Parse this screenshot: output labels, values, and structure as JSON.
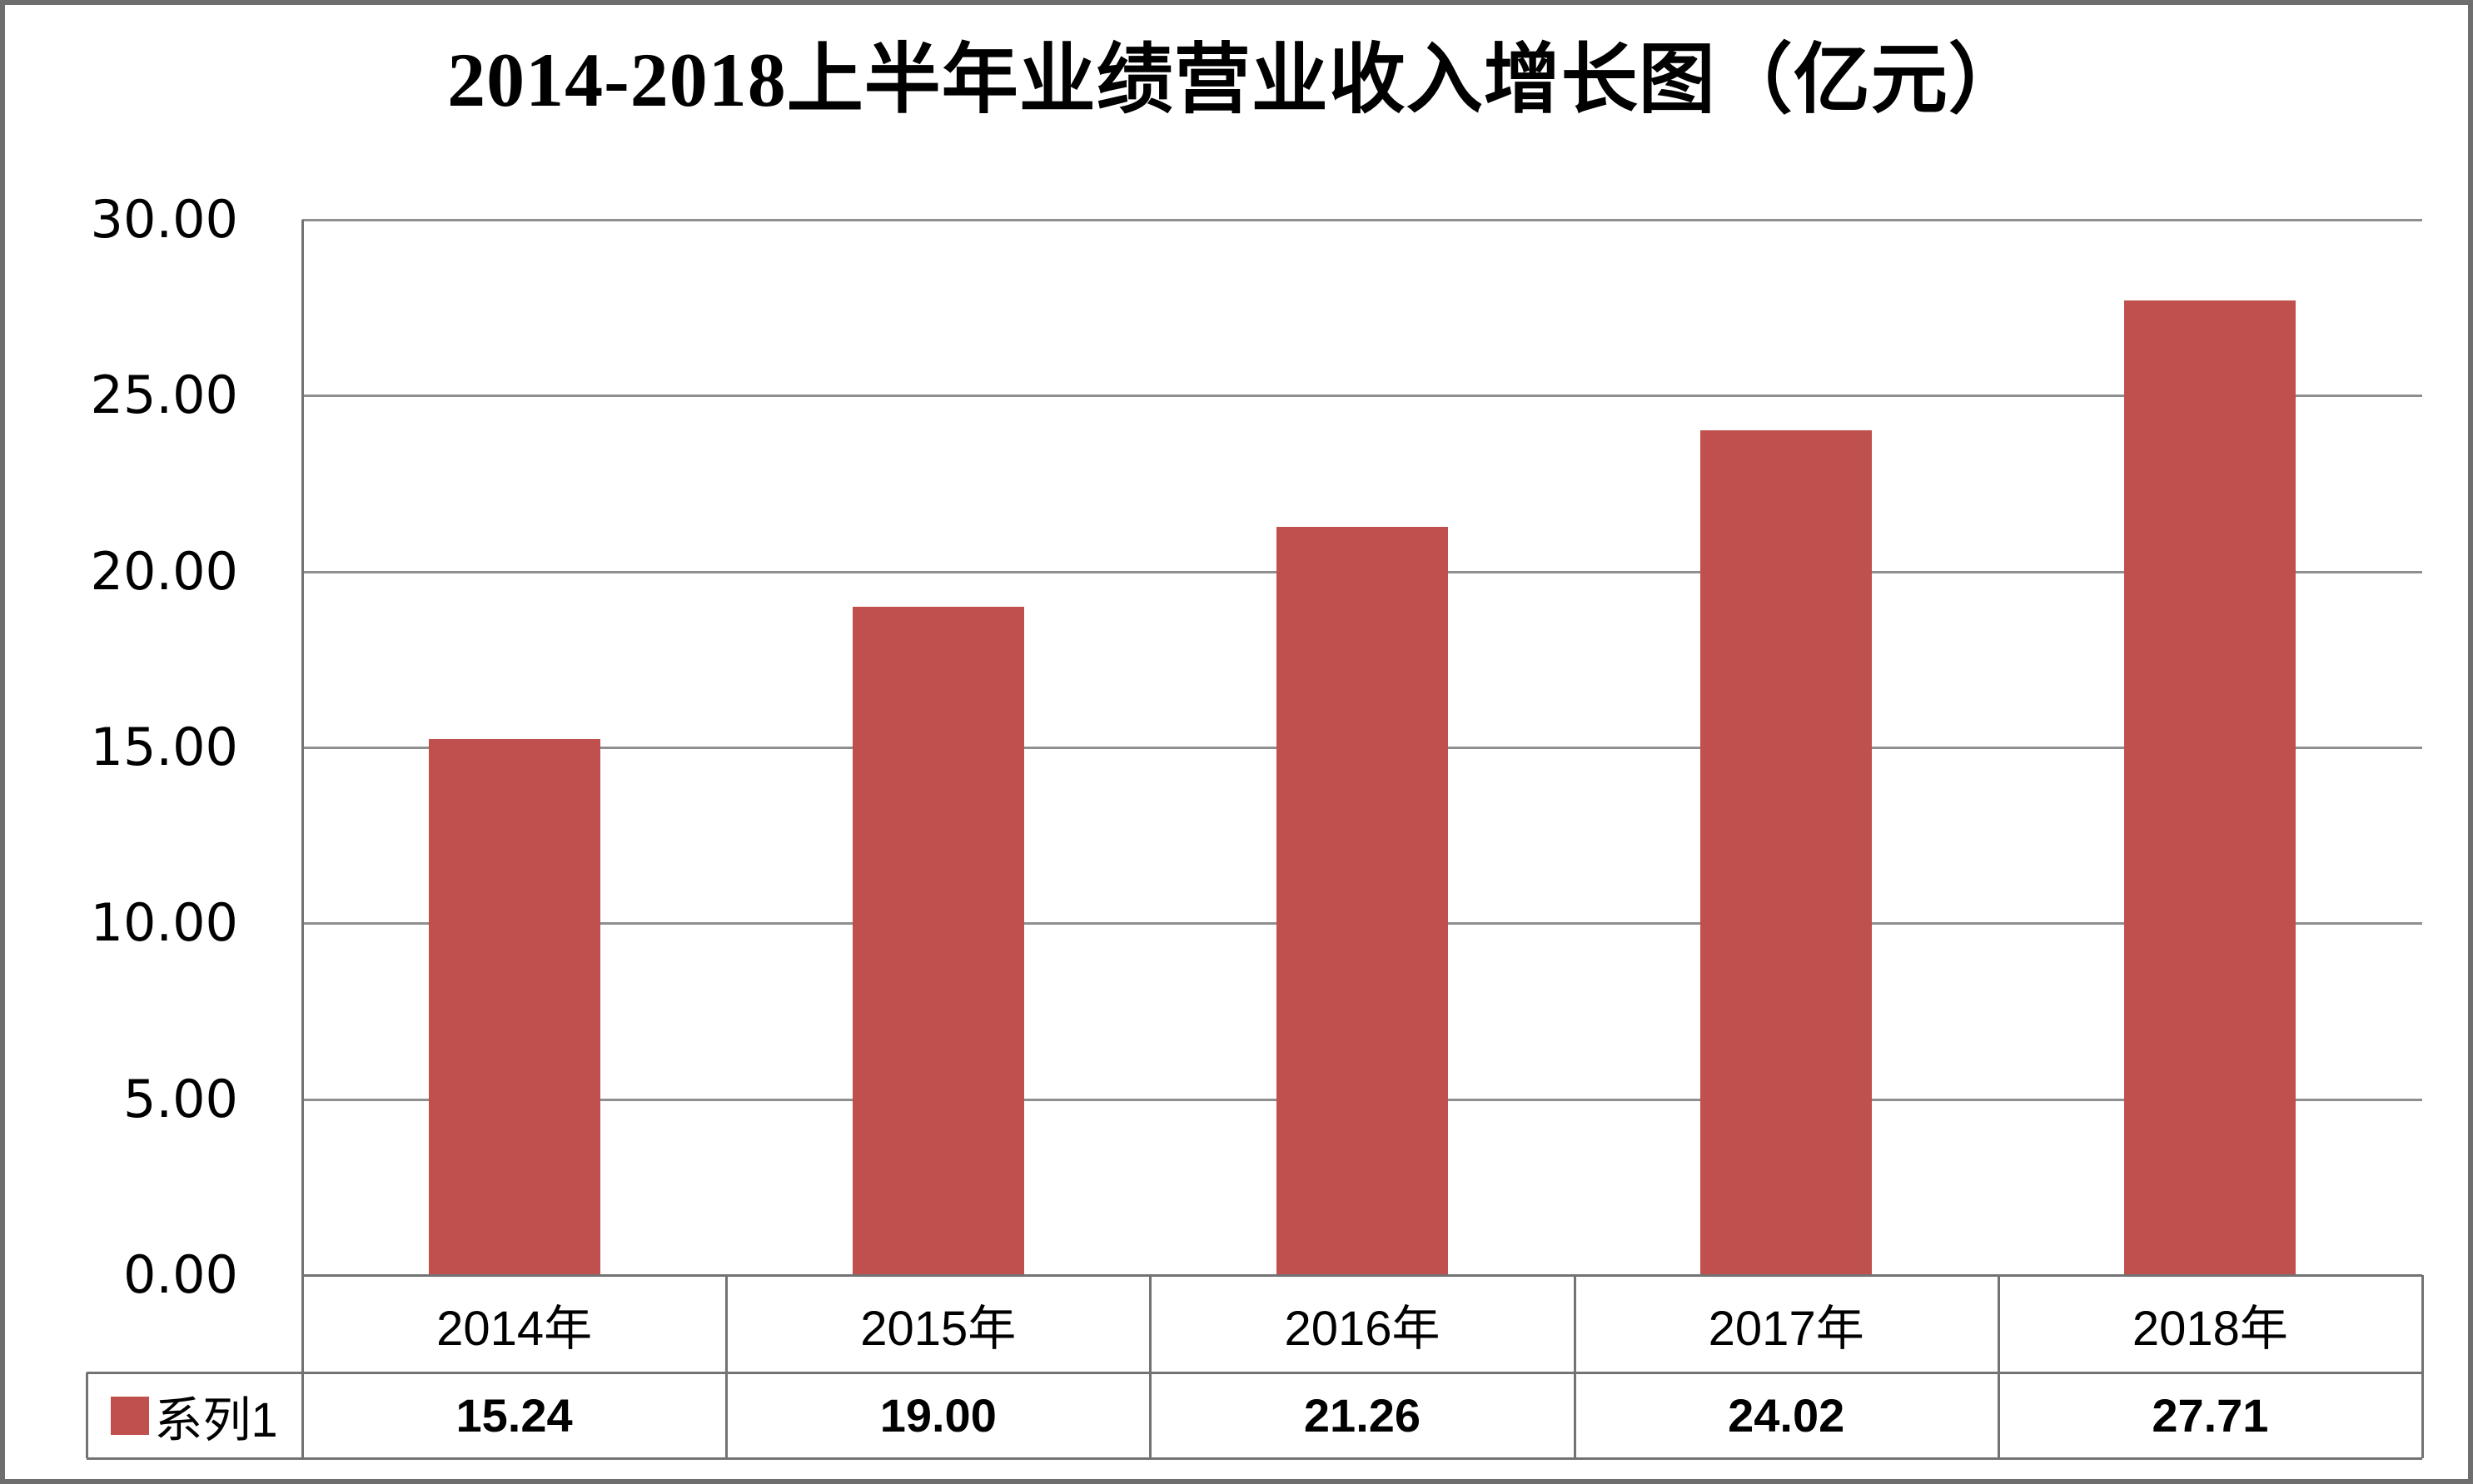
{
  "frame": {
    "background": "#ffffff",
    "border_color": "#6e6e6e"
  },
  "chart_data": {
    "type": "bar",
    "title": "2014-2018上半年业绩营业收入增长图（亿元）",
    "xlabel": "",
    "ylabel": "",
    "categories": [
      "2014年",
      "2015年",
      "2016年",
      "2017年",
      "2018年"
    ],
    "series": [
      {
        "name": "系列1",
        "color": "#C0504D",
        "values": [
          15.24,
          19.0,
          21.26,
          24.02,
          27.71
        ],
        "value_labels": [
          "15.24",
          "19.00",
          "21.26",
          "24.02",
          "27.71"
        ]
      }
    ],
    "ylim": [
      0,
      30
    ],
    "y_tick_step": 5,
    "y_tick_labels": [
      "30.00",
      "25.00",
      "20.00",
      "15.00",
      "10.00",
      "5.00",
      "0.00"
    ],
    "grid": true,
    "gridline_color": "#8f8f8f",
    "axis_table_border_color": "#737373",
    "legend_position": "data-table-left",
    "data_table_shown": true
  }
}
